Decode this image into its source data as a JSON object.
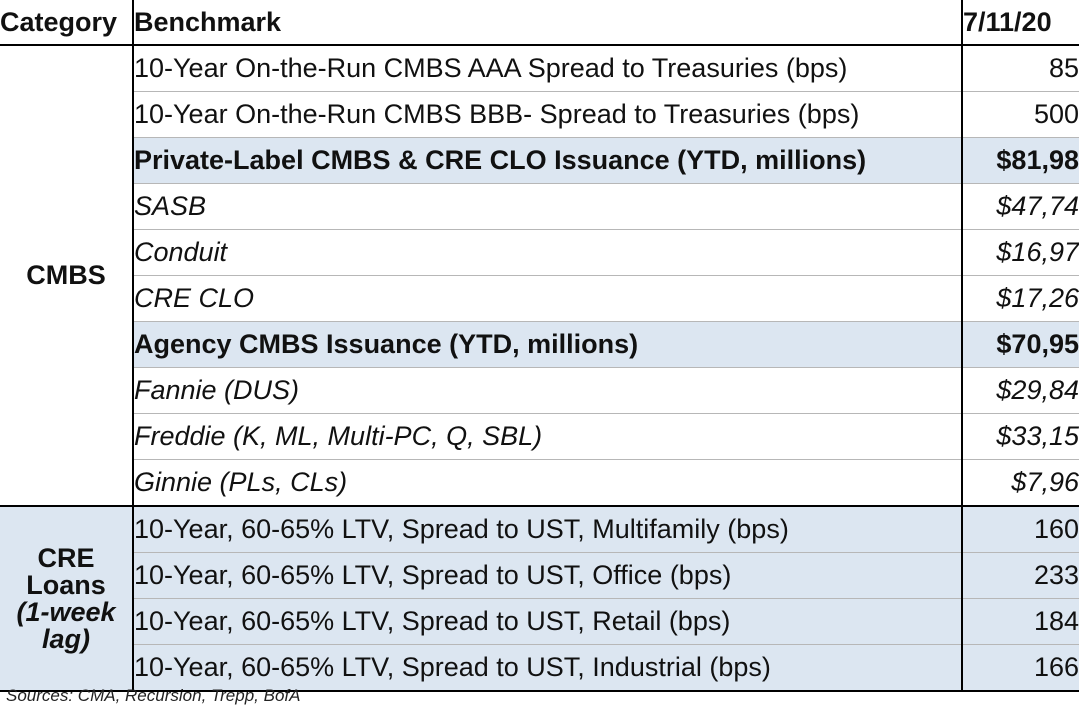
{
  "header": {
    "category": "Category",
    "benchmark": "Benchmark",
    "date": "7/11/20"
  },
  "groups": {
    "cmbs": "CMBS",
    "cre_lines": [
      "CRE",
      "Loans",
      "(1-week",
      "lag)"
    ]
  },
  "rows": [
    {
      "benchmark": "10-Year On-the-Run CMBS AAA Spread to Treasuries (bps)",
      "value": "85"
    },
    {
      "benchmark": "10-Year On-the-Run CMBS BBB- Spread to Treasuries (bps)",
      "value": "500"
    },
    {
      "benchmark": "Private-Label CMBS & CRE CLO Issuance (YTD, millions)",
      "value": "$81,98"
    },
    {
      "benchmark": "SASB",
      "value": "$47,74"
    },
    {
      "benchmark": "Conduit",
      "value": "$16,97"
    },
    {
      "benchmark": "CRE CLO",
      "value": "$17,26"
    },
    {
      "benchmark": "Agency CMBS Issuance (YTD, millions)",
      "value": "$70,95"
    },
    {
      "benchmark": "Fannie (DUS)",
      "value": "$29,84"
    },
    {
      "benchmark": "Freddie (K, ML, Multi-PC, Q, SBL)",
      "value": "$33,15"
    },
    {
      "benchmark": "Ginnie (PLs, CLs)",
      "value": "$7,96"
    },
    {
      "benchmark": "10-Year, 60-65% LTV, Spread to UST, Multifamily (bps)",
      "value": "160"
    },
    {
      "benchmark": "10-Year, 60-65% LTV, Spread to UST, Office (bps)",
      "value": "233"
    },
    {
      "benchmark": "10-Year, 60-65% LTV, Spread to UST, Retail (bps)",
      "value": "184"
    },
    {
      "benchmark": "10-Year, 60-65% LTV, Spread to UST, Industrial (bps)",
      "value": "166"
    }
  ],
  "sources": "Sources: CMA, Recursion, Trepp, BofA",
  "colors": {
    "highlight": "#dce6f1",
    "border": "#000000"
  }
}
